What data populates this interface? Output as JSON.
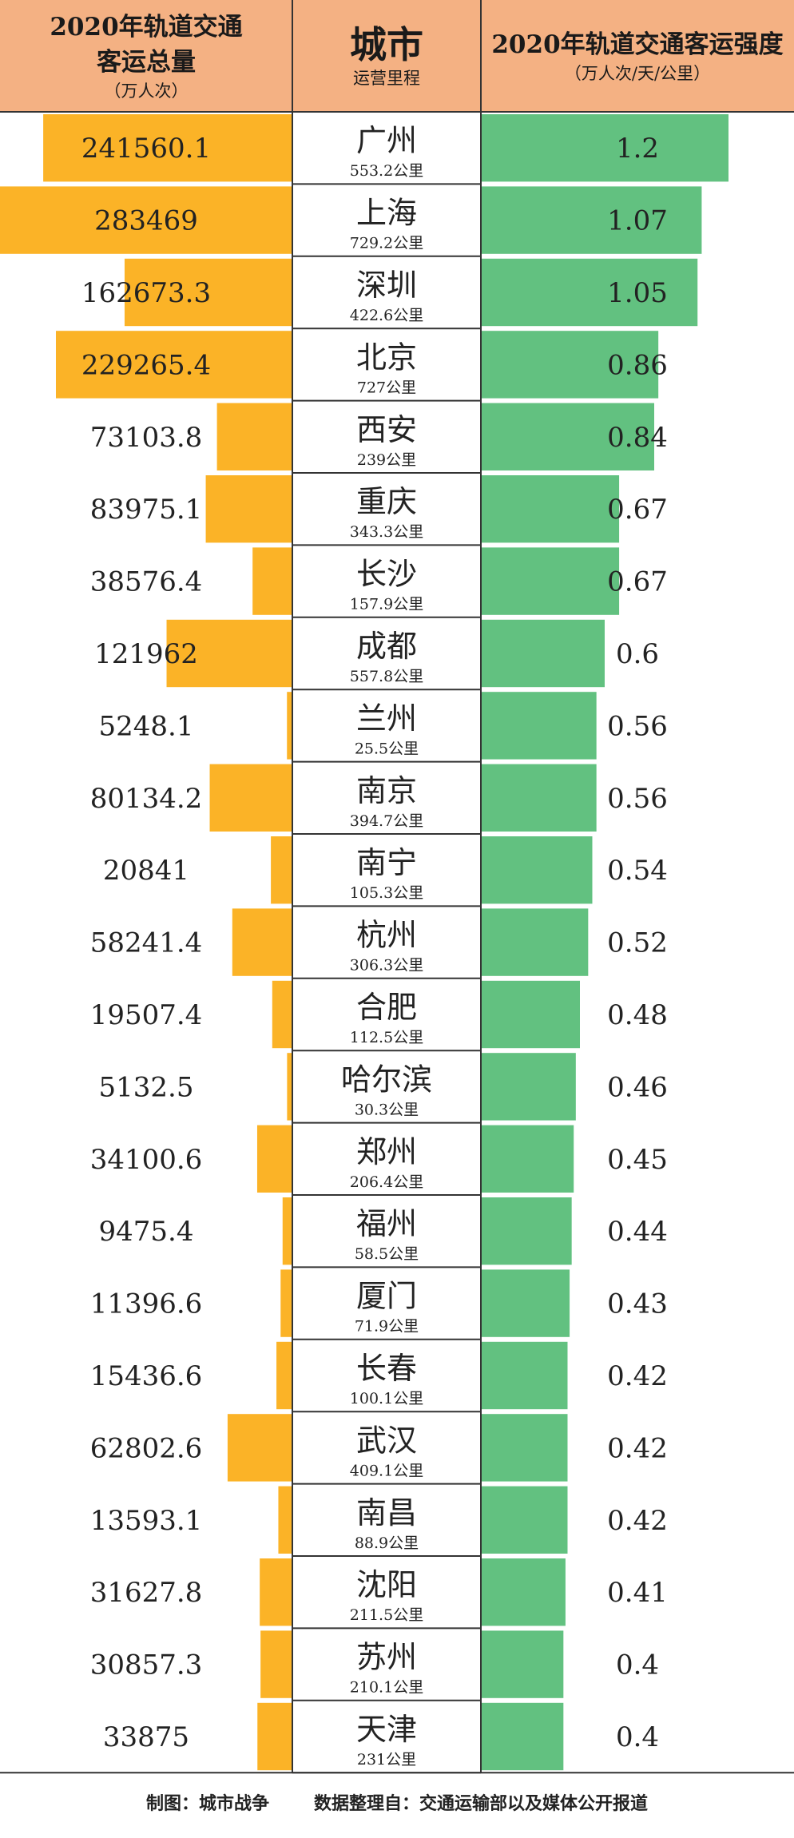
{
  "header": {
    "left_line1": "2020年轨道交通",
    "left_line2": "客运总量",
    "left_unit": "（万人次）",
    "mid_title": "城市",
    "mid_sub": "运营里程",
    "right_title": "2020年轨道交通客运强度",
    "right_unit": "（万人次/天/公里）"
  },
  "footer": {
    "maker": "制图：城市战争",
    "source": "数据整理自：交通运输部以及媒体公开报道"
  },
  "colors": {
    "header_bg": "#f4b183",
    "left_bar": "#fbb327",
    "right_bar": "#62c180",
    "grid": "#333333"
  },
  "chart_data": {
    "type": "table",
    "columns": [
      "2020年轨道交通客运总量（万人次）",
      "城市 / 运营里程",
      "2020年轨道交通客运强度（万人次/天/公里）"
    ],
    "rows": [
      {
        "city": "广州",
        "mileage": "553.2公里",
        "volume": "241560.1",
        "intensity": "1.2"
      },
      {
        "city": "上海",
        "mileage": "729.2公里",
        "volume": "283469",
        "intensity": "1.07"
      },
      {
        "city": "深圳",
        "mileage": "422.6公里",
        "volume": "162673.3",
        "intensity": "1.05"
      },
      {
        "city": "北京",
        "mileage": "727公里",
        "volume": "229265.4",
        "intensity": "0.86"
      },
      {
        "city": "西安",
        "mileage": "239公里",
        "volume": "73103.8",
        "intensity": "0.84"
      },
      {
        "city": "重庆",
        "mileage": "343.3公里",
        "volume": "83975.1",
        "intensity": "0.67"
      },
      {
        "city": "长沙",
        "mileage": "157.9公里",
        "volume": "38576.4",
        "intensity": "0.67"
      },
      {
        "city": "成都",
        "mileage": "557.8公里",
        "volume": "121962",
        "intensity": "0.6"
      },
      {
        "city": "兰州",
        "mileage": "25.5公里",
        "volume": "5248.1",
        "intensity": "0.56"
      },
      {
        "city": "南京",
        "mileage": "394.7公里",
        "volume": "80134.2",
        "intensity": "0.56"
      },
      {
        "city": "南宁",
        "mileage": "105.3公里",
        "volume": "20841",
        "intensity": "0.54"
      },
      {
        "city": "杭州",
        "mileage": "306.3公里",
        "volume": "58241.4",
        "intensity": "0.52"
      },
      {
        "city": "合肥",
        "mileage": "112.5公里",
        "volume": "19507.4",
        "intensity": "0.48"
      },
      {
        "city": "哈尔滨",
        "mileage": "30.3公里",
        "volume": "5132.5",
        "intensity": "0.46"
      },
      {
        "city": "郑州",
        "mileage": "206.4公里",
        "volume": "34100.6",
        "intensity": "0.45"
      },
      {
        "city": "福州",
        "mileage": "58.5公里",
        "volume": "9475.4",
        "intensity": "0.44"
      },
      {
        "city": "厦门",
        "mileage": "71.9公里",
        "volume": "11396.6",
        "intensity": "0.43"
      },
      {
        "city": "长春",
        "mileage": "100.1公里",
        "volume": "15436.6",
        "intensity": "0.42"
      },
      {
        "city": "武汉",
        "mileage": "409.1公里",
        "volume": "62802.6",
        "intensity": "0.42"
      },
      {
        "city": "南昌",
        "mileage": "88.9公里",
        "volume": "13593.1",
        "intensity": "0.42"
      },
      {
        "city": "沈阳",
        "mileage": "211.5公里",
        "volume": "31627.8",
        "intensity": "0.41"
      },
      {
        "city": "苏州",
        "mileage": "210.1公里",
        "volume": "30857.3",
        "intensity": "0.4"
      },
      {
        "city": "天津",
        "mileage": "231公里",
        "volume": "33875",
        "intensity": "0.4"
      }
    ]
  }
}
